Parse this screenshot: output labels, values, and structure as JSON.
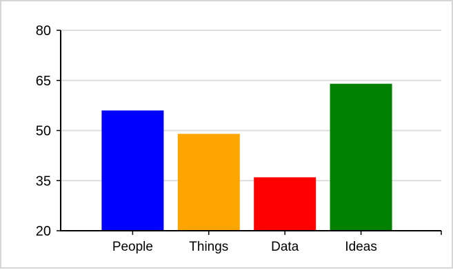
{
  "chart_data": {
    "type": "bar",
    "categories": [
      "People",
      "Things",
      "Data",
      "Ideas"
    ],
    "values": [
      56,
      49,
      36,
      64
    ],
    "colors": [
      "#0000ff",
      "#ffa500",
      "#ff0000",
      "#008000"
    ],
    "title": "",
    "xlabel": "",
    "ylabel": "",
    "ylim": [
      20,
      80
    ],
    "yticks": [
      20,
      35,
      50,
      65,
      80
    ],
    "grid": true,
    "gridColor": "#dddddd"
  }
}
